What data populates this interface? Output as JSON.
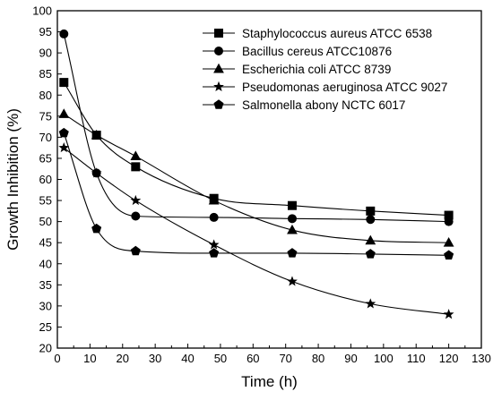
{
  "chart_data": {
    "type": "scatter",
    "title": "",
    "xlabel": "Time (h)",
    "ylabel": "Growth Inhibition (%)",
    "xlim": [
      0,
      130
    ],
    "ylim": [
      20,
      100
    ],
    "xticks": [
      0,
      10,
      20,
      30,
      40,
      50,
      60,
      70,
      80,
      90,
      100,
      110,
      120,
      130
    ],
    "yticks": [
      20,
      25,
      30,
      35,
      40,
      45,
      50,
      55,
      60,
      65,
      70,
      75,
      80,
      85,
      90,
      95,
      100
    ],
    "grid": false,
    "legend_position": "top-right",
    "fit_lines": true,
    "series": [
      {
        "name": "Staphylococcus aureus ATCC  6538",
        "marker": "square",
        "x": [
          2,
          12,
          24,
          48,
          72,
          96,
          120
        ],
        "y": [
          83,
          70.5,
          63,
          55.5,
          53.8,
          52.5,
          51.5
        ]
      },
      {
        "name": "Bacillus cereus ATCC10876",
        "marker": "circle",
        "x": [
          2,
          12,
          24,
          48,
          72,
          96,
          120
        ],
        "y": [
          94.5,
          61.5,
          51.3,
          51,
          50.7,
          50.5,
          50
        ]
      },
      {
        "name": "Escherichia coli ATCC 8739",
        "marker": "triangle",
        "x": [
          2,
          12,
          24,
          48,
          72,
          96,
          120
        ],
        "y": [
          75.5,
          70.5,
          65.5,
          55,
          48,
          45.5,
          45
        ]
      },
      {
        "name": "Pseudomonas aeruginosa ATCC 9027",
        "marker": "star",
        "x": [
          2,
          12,
          24,
          48,
          72,
          96,
          120
        ],
        "y": [
          67.5,
          61.5,
          55,
          44.5,
          35.8,
          30.5,
          28
        ]
      },
      {
        "name": "Salmonella abony NCTC 6017",
        "marker": "pentagon",
        "x": [
          2,
          12,
          24,
          48,
          72,
          96,
          120
        ],
        "y": [
          71,
          48.3,
          43,
          42.5,
          42.5,
          42.3,
          42
        ]
      }
    ]
  }
}
